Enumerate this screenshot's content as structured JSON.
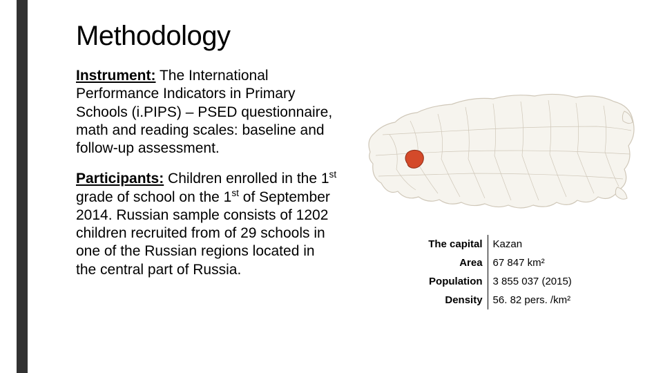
{
  "title": "Methodology",
  "paragraphs": {
    "instrument": {
      "label": "Instrument:",
      "text": " The International Performance Indicators in Primary Schools (i.PIPS) – PSED questionnaire, math and reading scales: baseline and follow-up assessment."
    },
    "participants": {
      "label": "Participants:",
      "text_pre": " Children enrolled in the 1",
      "sup1": "st",
      "text_mid1": " grade of school on the 1",
      "sup2": "st",
      "text_mid2": " of September 2014. Russian sample consists of 1202 children recruited from of 29 schools in one of the Russian regions located in the central part of Russia."
    }
  },
  "info_rows": [
    {
      "label": "The capital",
      "value": "Kazan"
    },
    {
      "label": "Area",
      "value": "67 847 km²"
    },
    {
      "label": "Population",
      "value": "3 855 037 (2015)"
    },
    {
      "label": "Density",
      "value": "56. 82 pers. /km²"
    }
  ],
  "map": {
    "background": "#ffffff",
    "land_fill": "#f6f4ee",
    "land_stroke": "#cfc7b8",
    "border_stroke": "#b0a895",
    "highlight_fill": "#d44a2a",
    "highlight_stroke": "#8f2e18",
    "water": "#ffffff"
  }
}
